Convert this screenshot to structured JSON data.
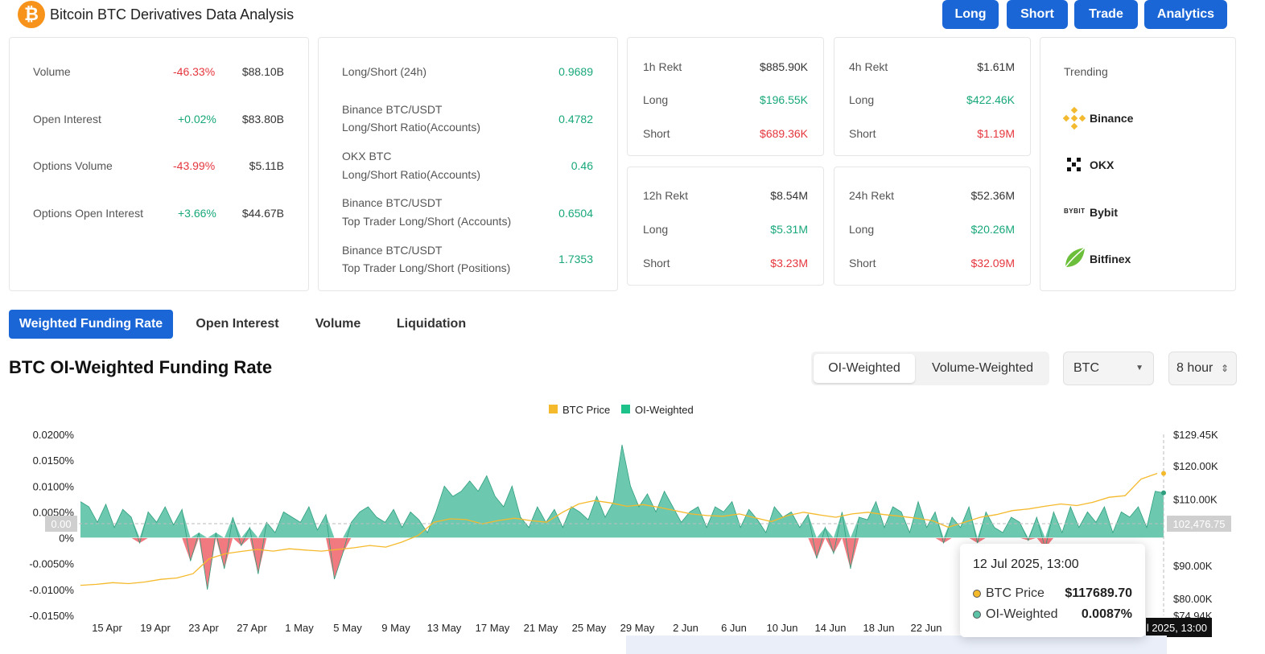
{
  "header": {
    "logo_glyph": "₿",
    "title": "Bitcoin BTC Derivatives Data Analysis",
    "nav": [
      "Long",
      "Short",
      "Trade",
      "Analytics"
    ]
  },
  "overview": [
    {
      "label": "Volume",
      "change": "-46.33%",
      "value": "$88.10B",
      "dir": "down"
    },
    {
      "label": "Open Interest",
      "change": "+0.02%",
      "value": "$83.80B",
      "dir": "up"
    },
    {
      "label": "Options Volume",
      "change": "-43.99%",
      "value": "$5.11B",
      "dir": "down"
    },
    {
      "label": "Options Open Interest",
      "change": "+3.66%",
      "value": "$44.67B",
      "dir": "up"
    }
  ],
  "ratios": [
    {
      "line1": "Long/Short (24h)",
      "line2": "",
      "value": "0.9689"
    },
    {
      "line1": "Binance BTC/USDT",
      "line2": "Long/Short Ratio(Accounts)",
      "value": "0.4782"
    },
    {
      "line1": "OKX BTC",
      "line2": "Long/Short Ratio(Accounts)",
      "value": "0.46"
    },
    {
      "line1": "Binance BTC/USDT",
      "line2": "Top Trader Long/Short (Accounts)",
      "value": "0.6504"
    },
    {
      "line1": "Binance BTC/USDT",
      "line2": "Top Trader Long/Short (Positions)",
      "value": "1.7353"
    }
  ],
  "rekt": [
    {
      "title": "1h Rekt",
      "total": "$885.90K",
      "long_label": "Long",
      "long": "$196.55K",
      "short_label": "Short",
      "short": "$689.36K"
    },
    {
      "title": "4h Rekt",
      "total": "$1.61M",
      "long_label": "Long",
      "long": "$422.46K",
      "short_label": "Short",
      "short": "$1.19M"
    },
    {
      "title": "12h Rekt",
      "total": "$8.54M",
      "long_label": "Long",
      "long": "$5.31M",
      "short_label": "Short",
      "short": "$3.23M"
    },
    {
      "title": "24h Rekt",
      "total": "$52.36M",
      "long_label": "Long",
      "long": "$20.26M",
      "short_label": "Short",
      "short": "$32.09M"
    }
  ],
  "trending": {
    "title": "Trending",
    "items": [
      {
        "name": "Binance",
        "icon": "binance-icon"
      },
      {
        "name": "OKX",
        "icon": "okx-icon"
      },
      {
        "name": "Bybit",
        "icon": "bybit-icon",
        "icon_text": "BYBIT"
      },
      {
        "name": "Bitfinex",
        "icon": "bitfinex-icon"
      }
    ]
  },
  "tabs": [
    "Weighted Funding Rate",
    "Open Interest",
    "Volume",
    "Liquidation"
  ],
  "section": {
    "title": "BTC OI-Weighted Funding Rate",
    "segments": [
      "OI-Weighted",
      "Volume-Weighted"
    ],
    "coin": "BTC",
    "interval": "8 hour"
  },
  "colors": {
    "accent": "#1a66d6",
    "positive": "#18a77a",
    "negative": "#e5363d",
    "oi": "#5cc3a7",
    "neg_area": "#f06a72",
    "price": "#f5b92c"
  },
  "tooltip": {
    "date": "12 Jul 2025, 13:00",
    "rows": [
      {
        "label": "BTC Price",
        "value": "$117689.70"
      },
      {
        "label": "OI-Weighted",
        "value": "0.0087%"
      }
    ],
    "crosshair_x_label": "12 Jul 2025, 13:00",
    "crosshair_y_label": "102,476.75",
    "crosshair_left_label": "0.00"
  },
  "chart_data": {
    "type": "area",
    "title": "BTC OI-Weighted Funding Rate",
    "legend": [
      "BTC Price",
      "OI-Weighted"
    ],
    "legend_position": "top-center",
    "x_ticks": [
      "15 Apr",
      "19 Apr",
      "23 Apr",
      "27 Apr",
      "1 May",
      "5 May",
      "9 May",
      "13 May",
      "17 May",
      "21 May",
      "25 May",
      "29 May",
      "2 Jun",
      "6 Jun",
      "10 Jun",
      "14 Jun",
      "18 Jun",
      "22 Jun"
    ],
    "y_left_ticks": [
      "0.0200%",
      "0.0150%",
      "0.0100%",
      "0.0050%",
      "0%",
      "-0.0050%",
      "-0.0100%",
      "-0.0150%"
    ],
    "y_left_range": [
      -0.015,
      0.02
    ],
    "y_right_ticks": [
      "$129.45K",
      "$120.00K",
      "$110.00K",
      "$90.00K",
      "$80.00K",
      "$74.94K"
    ],
    "y_right_range": [
      74940,
      129450
    ],
    "x_range_days": [
      "12 Apr",
      "12 Jul"
    ],
    "series": [
      {
        "name": "OI-Weighted",
        "unit": "%",
        "values": [
          0.007,
          0.006,
          0.003,
          0.0065,
          0.002,
          0.0055,
          0.004,
          -0.001,
          0.005,
          0.003,
          0.006,
          0.0025,
          0.0055,
          -0.0045,
          0.001,
          -0.01,
          0.001,
          -0.006,
          0.004,
          -0.0015,
          0.002,
          -0.007,
          0.003,
          0.001,
          0.005,
          0.004,
          0.003,
          0.006,
          0.0015,
          0.0045,
          -0.008,
          -0.003,
          0.003,
          0.005,
          0.006,
          0.004,
          0.003,
          0.0055,
          0.002,
          0.005,
          0.0035,
          0.001,
          0.005,
          0.01,
          0.008,
          0.009,
          0.011,
          0.009,
          0.012,
          0.008,
          0.006,
          0.01,
          0.004,
          0.002,
          0.006,
          0.003,
          0.0055,
          0.002,
          0.006,
          0.005,
          0.0035,
          0.008,
          0.004,
          0.007,
          0.018,
          0.01,
          0.006,
          0.0085,
          0.005,
          0.009,
          0.006,
          0.003,
          0.005,
          0.006,
          0.002,
          0.006,
          0.005,
          0.007,
          0.002,
          0.0055,
          0.0035,
          0.001,
          0.006,
          0.004,
          0.005,
          0.002,
          0.0045,
          -0.004,
          0.002,
          -0.003,
          0.005,
          -0.006,
          0.004,
          0.0035,
          0.007,
          0.002,
          0.006,
          0.005,
          0.001,
          0.007,
          0.002,
          0.005,
          -0.001,
          0.004,
          0.002,
          0.006,
          -0.001,
          0.005,
          0.002,
          0.001,
          0.004,
          0.003,
          -0.0005,
          0.004,
          -0.002,
          0.005,
          0.001,
          0.006,
          0.002,
          0.005,
          0.003,
          0.006,
          0.001,
          0.005,
          0.004,
          0.006,
          0.002,
          0.009,
          0.0087
        ]
      },
      {
        "name": "BTC Price",
        "unit": "USD",
        "values": [
          84000,
          84300,
          84800,
          84500,
          85000,
          85800,
          86200,
          87500,
          92000,
          93500,
          94200,
          94800,
          94300,
          95000,
          94600,
          94300,
          94800,
          95300,
          96000,
          95500,
          97000,
          99000,
          103000,
          104000,
          103800,
          102500,
          103500,
          104200,
          103500,
          103000,
          106000,
          108500,
          109500,
          108800,
          107800,
          108300,
          107500,
          106500,
          105500,
          105000,
          104800,
          105500,
          104300,
          103200,
          105000,
          106000,
          105200,
          104500,
          105500,
          106000,
          105300,
          104800,
          104200,
          103500,
          101500,
          103000,
          104500,
          105300,
          106500,
          107000,
          107800,
          108500,
          108000,
          109000,
          110500,
          111000,
          116000,
          117689.7
        ]
      }
    ],
    "tooltip_point": {
      "date": "12 Jul 2025, 13:00",
      "btc_price": 117689.7,
      "oi_weighted_pct": 0.0087
    }
  }
}
